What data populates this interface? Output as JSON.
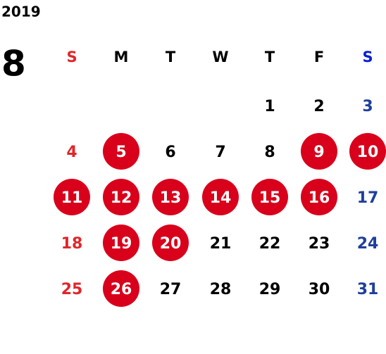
{
  "calendar": {
    "year": "2019",
    "month": "8",
    "weekdays": [
      "S",
      "M",
      "T",
      "W",
      "T",
      "F",
      "S"
    ],
    "colors": {
      "sunday": "#e0262a",
      "saturday": "#1f3f9c",
      "saturday_header": "#0a1fd6",
      "weekday": "#000000",
      "marked_fill": "#d9001b",
      "marked_text": "#ffffff"
    },
    "weeks": [
      [
        null,
        null,
        null,
        null,
        {
          "day": 1,
          "marked": false
        },
        {
          "day": 2,
          "marked": false
        },
        {
          "day": 3,
          "marked": false
        }
      ],
      [
        {
          "day": 4,
          "marked": false
        },
        {
          "day": 5,
          "marked": true
        },
        {
          "day": 6,
          "marked": false
        },
        {
          "day": 7,
          "marked": false
        },
        {
          "day": 8,
          "marked": false
        },
        {
          "day": 9,
          "marked": true
        },
        {
          "day": 10,
          "marked": true
        }
      ],
      [
        {
          "day": 11,
          "marked": true
        },
        {
          "day": 12,
          "marked": true
        },
        {
          "day": 13,
          "marked": true
        },
        {
          "day": 14,
          "marked": true
        },
        {
          "day": 15,
          "marked": true
        },
        {
          "day": 16,
          "marked": true
        },
        {
          "day": 17,
          "marked": false
        }
      ],
      [
        {
          "day": 18,
          "marked": false
        },
        {
          "day": 19,
          "marked": true
        },
        {
          "day": 20,
          "marked": true
        },
        {
          "day": 21,
          "marked": false
        },
        {
          "day": 22,
          "marked": false
        },
        {
          "day": 23,
          "marked": false
        },
        {
          "day": 24,
          "marked": false
        }
      ],
      [
        {
          "day": 25,
          "marked": false
        },
        {
          "day": 26,
          "marked": true
        },
        {
          "day": 27,
          "marked": false
        },
        {
          "day": 28,
          "marked": false
        },
        {
          "day": 29,
          "marked": false
        },
        {
          "day": 30,
          "marked": false
        },
        {
          "day": 31,
          "marked": false
        }
      ]
    ]
  }
}
